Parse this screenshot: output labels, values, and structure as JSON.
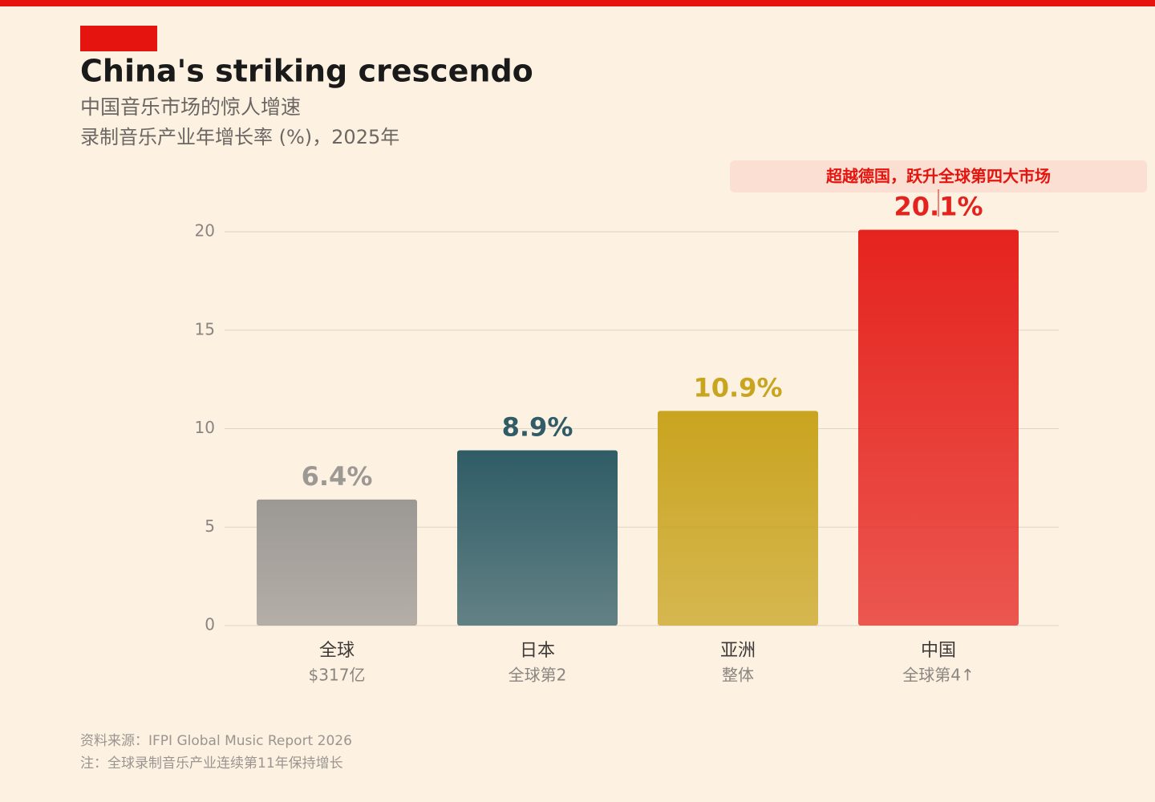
{
  "chart_data": {
    "type": "bar",
    "title": "China's striking crescendo",
    "subtitle": [
      "中国音乐市场的惊人增速",
      "录制音乐产业年增长率 (%)，2025年"
    ],
    "categories": [
      "全球",
      "日本",
      "亚洲",
      "中国"
    ],
    "category_notes": [
      "$317亿",
      "全球第2",
      "整体",
      "全球第4↑"
    ],
    "values": [
      6.4,
      8.9,
      10.9,
      20.1
    ],
    "value_labels": [
      "6.4%",
      "8.9%",
      "10.9%",
      "20.1%"
    ],
    "colors": [
      "#9c9894",
      "#2f5c66",
      "#c9a41f",
      "#e5231e"
    ],
    "ylim": [
      0,
      20
    ],
    "yticks": [
      0,
      5,
      10,
      15,
      20
    ],
    "grid": true,
    "annotation": "超越德国，跃升全球第四大市场",
    "source": "资料来源：IFPI Global Music Report 2026",
    "note": "注：全球录制音乐产业连续第11年保持增长"
  }
}
